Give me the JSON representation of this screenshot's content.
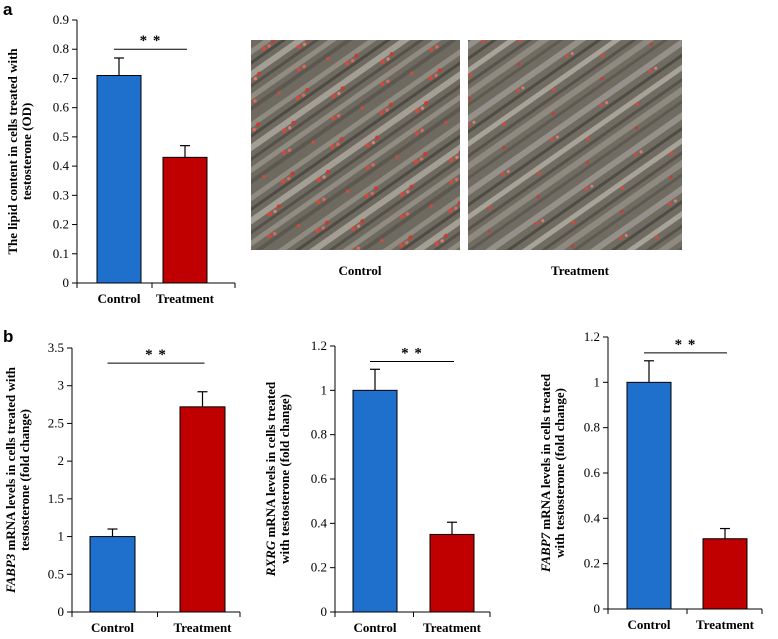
{
  "panels": {
    "a": "a",
    "b": "b"
  },
  "colors": {
    "control": "#1F6FCC",
    "treatment": "#C00000"
  },
  "micrographs": {
    "control_caption": "Control",
    "treatment_caption": "Treatment"
  },
  "chart_data": [
    {
      "type": "bar",
      "title": "",
      "ylabel_lines": [
        "The lipid content in cells treated with",
        "testosterone (OD)"
      ],
      "ylabel_italic_prefix": "",
      "categories": [
        "Control",
        "Treatment"
      ],
      "values": [
        0.71,
        0.43
      ],
      "errors": [
        0.06,
        0.04
      ],
      "ylim": [
        0,
        0.9
      ],
      "yticks": [
        0,
        0.1,
        0.2,
        0.3,
        0.4,
        0.5,
        0.6,
        0.7,
        0.8,
        0.9
      ],
      "ytick_labels": [
        "0",
        "0.1",
        "0.2",
        "0.3",
        "0.4",
        "0.5",
        "0.6",
        "0.7",
        "0.8",
        "0.9"
      ],
      "significance": "* *",
      "sig_level": 0.8
    },
    {
      "type": "bar",
      "title": "",
      "ylabel_lines": [
        " mRNA levels in cells treated with",
        "testosterone (fold change)"
      ],
      "ylabel_italic_prefix": "FABP3",
      "categories": [
        "Control",
        "Treatment"
      ],
      "values": [
        1.0,
        2.72
      ],
      "errors": [
        0.1,
        0.2
      ],
      "ylim": [
        0,
        3.5
      ],
      "yticks": [
        0,
        0.5,
        1,
        1.5,
        2,
        2.5,
        3,
        3.5
      ],
      "ytick_labels": [
        "0",
        "0.5",
        "1",
        "1.5",
        "2",
        "2.5",
        "3",
        "3.5"
      ],
      "significance": "* *",
      "sig_level": 3.3
    },
    {
      "type": "bar",
      "title": "",
      "ylabel_lines": [
        " mRNA levels in cells treated",
        "with testosterone (fold change)"
      ],
      "ylabel_italic_prefix": "RXRG",
      "categories": [
        "Control",
        "Treatment"
      ],
      "values": [
        1.0,
        0.35
      ],
      "errors": [
        0.095,
        0.055
      ],
      "ylim": [
        0,
        1.2
      ],
      "yticks": [
        0,
        0.2,
        0.4,
        0.6,
        0.8,
        1,
        1.2
      ],
      "ytick_labels": [
        "0",
        "0.2",
        "0.4",
        "0.6",
        "0.8",
        "1",
        "1.2"
      ],
      "significance": "* *",
      "sig_level": 1.13
    },
    {
      "type": "bar",
      "title": "",
      "ylabel_lines": [
        " mRNA levels in cells treated",
        "with testosterone (fold change)"
      ],
      "ylabel_italic_prefix": "FABP7",
      "categories": [
        "Control",
        "Treatment"
      ],
      "values": [
        1.0,
        0.31
      ],
      "errors": [
        0.095,
        0.045
      ],
      "ylim": [
        0,
        1.2
      ],
      "yticks": [
        0,
        0.2,
        0.4,
        0.6,
        0.8,
        1,
        1.2
      ],
      "ytick_labels": [
        "0",
        "0.2",
        "0.4",
        "0.6",
        "0.8",
        "1",
        "1.2"
      ],
      "significance": "* *",
      "sig_level": 1.13
    }
  ]
}
